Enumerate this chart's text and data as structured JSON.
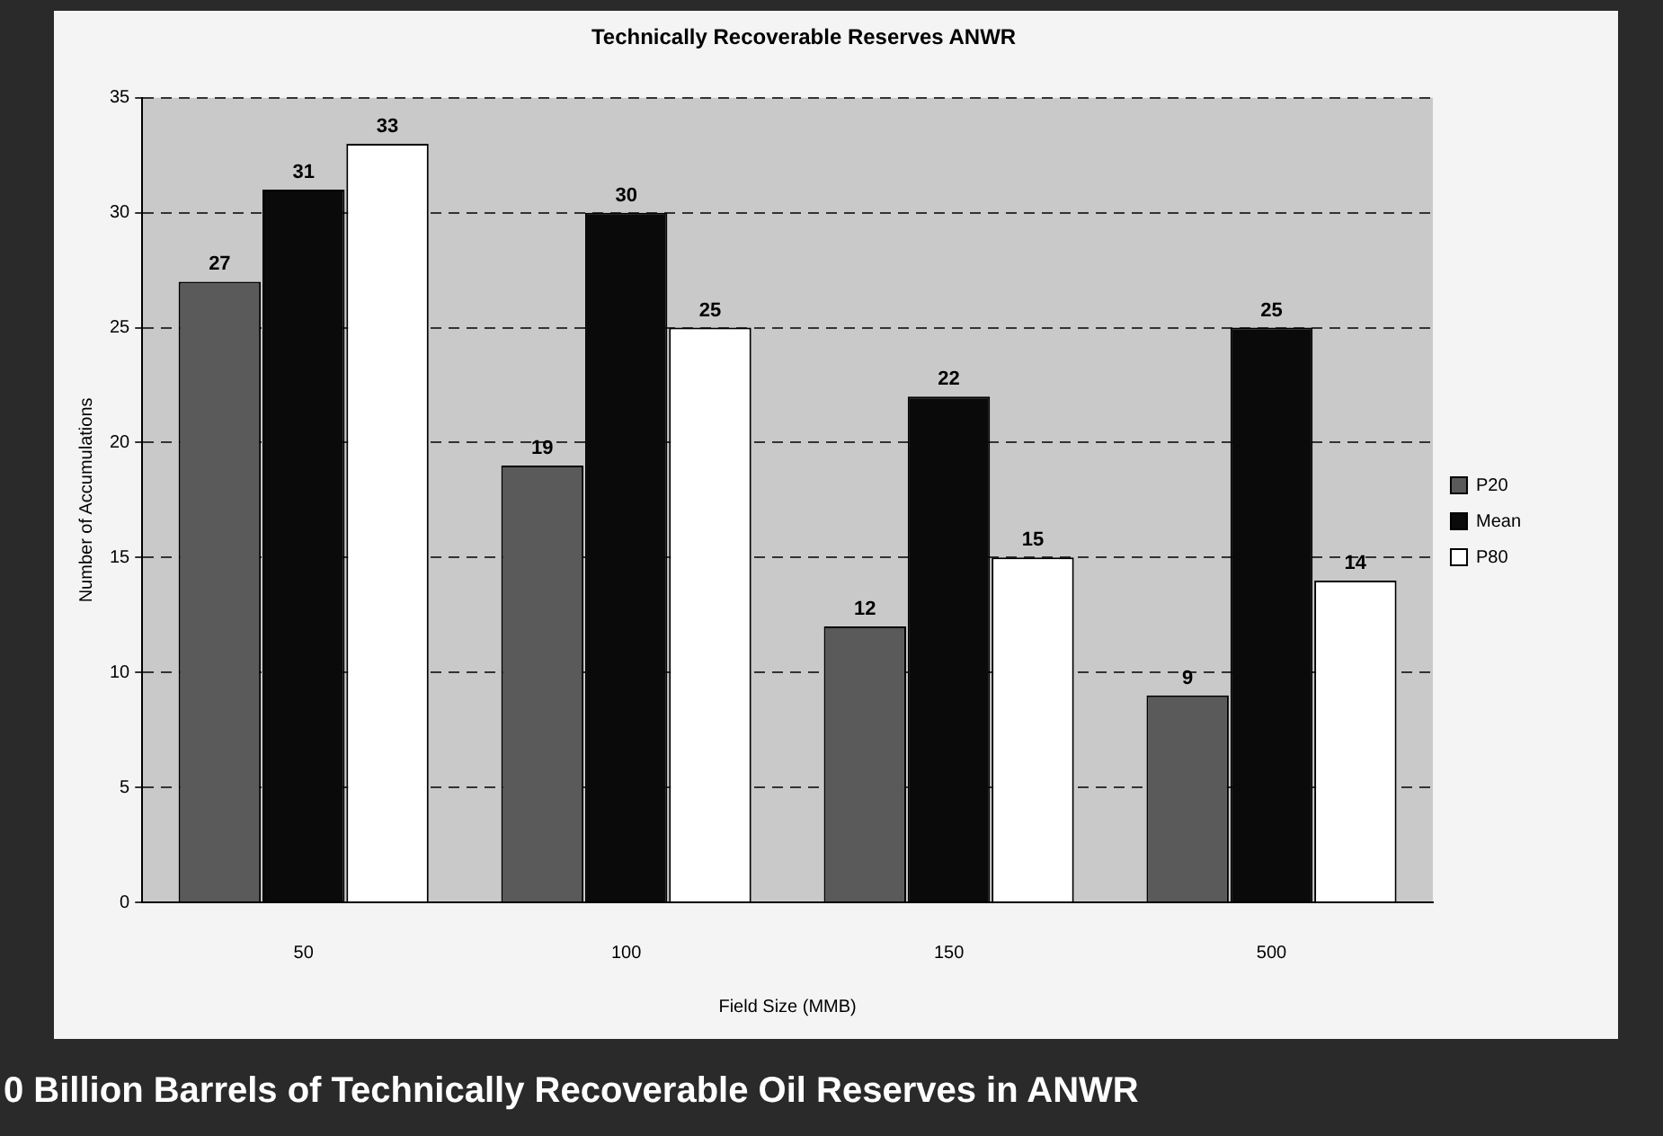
{
  "chart_data": {
    "type": "bar",
    "title": "Technically Recoverable Reserves ANWR",
    "xlabel": "Field Size (MMB)",
    "ylabel": "Number of Accumulations",
    "categories": [
      "50",
      "100",
      "150",
      "500"
    ],
    "series": [
      {
        "name": "P20",
        "color": "#5a5a5a",
        "values": [
          27,
          19,
          12,
          9
        ]
      },
      {
        "name": "Mean",
        "color": "#0a0a0a",
        "values": [
          31,
          30,
          22,
          25
        ]
      },
      {
        "name": "P80",
        "color": "#ffffff",
        "values": [
          33,
          25,
          15,
          14
        ]
      }
    ],
    "ylim": [
      0,
      35
    ],
    "yticks": [
      0,
      5,
      10,
      15,
      20,
      25,
      30,
      35
    ],
    "grid": "y",
    "line_style": "dashed",
    "legend": "right",
    "data_labels": true,
    "annotations": [
      "0 Billion Barrels of Technically Recoverable Oil Reserves in ANWR"
    ]
  }
}
